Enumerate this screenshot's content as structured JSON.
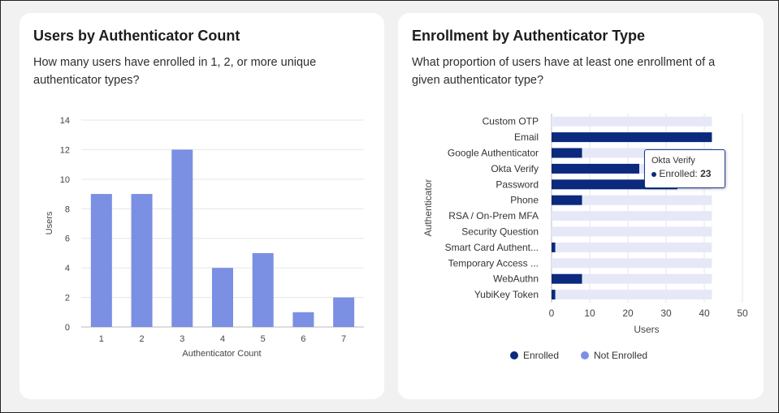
{
  "chart_data": [
    {
      "type": "bar",
      "title": "Users by Authenticator Count",
      "subtitle": "How many users have enrolled in 1, 2, or more unique authenticator types?",
      "categories": [
        "1",
        "2",
        "3",
        "4",
        "5",
        "6",
        "7"
      ],
      "values": [
        9,
        9,
        12,
        4,
        5,
        1,
        2
      ],
      "xlabel": "Authenticator Count",
      "ylabel": "Users",
      "ylim": [
        0,
        14
      ],
      "yticks": [
        0,
        2,
        4,
        6,
        8,
        10,
        12,
        14
      ],
      "grid": true,
      "color": "#7b8fe3"
    },
    {
      "type": "bar",
      "orientation": "horizontal",
      "stacked": true,
      "title": "Enrollment by Authenticator Type",
      "subtitle": "What proportion of users have at least one enrollment of a given authenticator type?",
      "categories": [
        "Custom OTP",
        "Email",
        "Google Authenticator",
        "Okta Verify",
        "Password",
        "Phone",
        "RSA / On-Prem MFA",
        "Security Question",
        "Smart Card Authent...",
        "Temporary Access ...",
        "WebAuthn",
        "YubiKey Token"
      ],
      "series": [
        {
          "name": "Enrolled",
          "values": [
            0,
            42,
            8,
            23,
            33,
            8,
            0,
            0,
            1,
            0,
            8,
            1
          ],
          "color": "#0b2a7d"
        },
        {
          "name": "Not Enrolled",
          "values": [
            42,
            0,
            34,
            19,
            9,
            34,
            42,
            42,
            41,
            42,
            34,
            41
          ],
          "color": "#7b8fe3"
        }
      ],
      "xlabel": "Users",
      "ylabel": "Authenticator",
      "xlim": [
        0,
        50
      ],
      "xticks": [
        0,
        10,
        20,
        30,
        40,
        50
      ],
      "grid": true,
      "legend": "bottom",
      "tooltip": {
        "title": "Okta Verify",
        "label": "Enrolled:",
        "value": "23"
      }
    }
  ]
}
